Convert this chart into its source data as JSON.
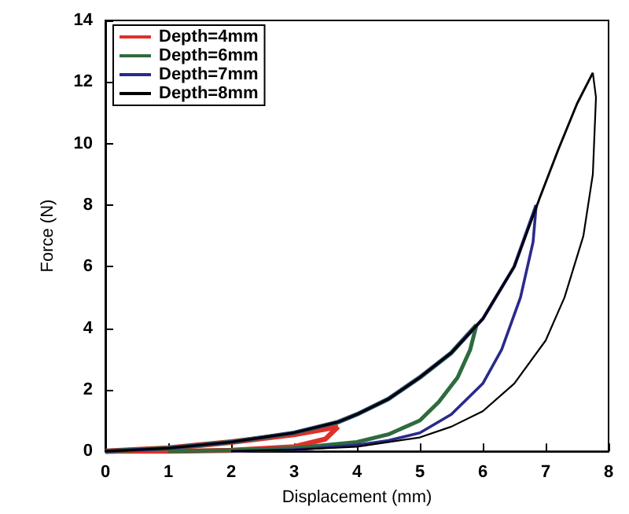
{
  "chart_data": {
    "type": "line",
    "xlabel": "Displacement (mm)",
    "ylabel": "Force (N)",
    "xlim": [
      0,
      8
    ],
    "xticks": [
      0,
      1,
      2,
      3,
      4,
      5,
      6,
      7,
      8
    ],
    "ylim": [
      0,
      14
    ],
    "yticks": [
      0,
      2,
      4,
      6,
      8,
      10,
      12,
      14
    ],
    "grid": false,
    "legend": "top left",
    "marker": "none",
    "line_style": "solid",
    "series": [
      {
        "name": "Depth=4mm",
        "color": "#e0302a",
        "x": [
          0,
          1,
          2,
          3,
          3.7
        ],
        "values": [
          0,
          0.1,
          0.3,
          0.55,
          0.8
        ]
      },
      {
        "color": "#e0302a",
        "x": [
          3.7,
          3.5,
          3,
          2,
          1,
          0
        ],
        "values": [
          0.8,
          0.4,
          0.15,
          0.03,
          0,
          0
        ]
      },
      {
        "name": "Depth=6mm",
        "color": "#2e6b3e",
        "x": [
          0,
          1,
          2,
          3,
          3.7,
          4,
          4.5,
          5,
          5.5,
          5.9
        ],
        "values": [
          0,
          0.1,
          0.3,
          0.6,
          0.95,
          1.2,
          1.7,
          2.4,
          3.2,
          4.1
        ]
      },
      {
        "color": "#2e6b3e",
        "x": [
          5.9,
          5.8,
          5.6,
          5.3,
          5,
          4.5,
          4,
          3,
          2,
          1
        ],
        "values": [
          4.1,
          3.3,
          2.4,
          1.6,
          1,
          0.55,
          0.3,
          0.1,
          0.03,
          0
        ]
      },
      {
        "name": "Depth=7mm",
        "color": "#2a2a8a",
        "x": [
          0,
          1,
          2,
          3,
          3.7,
          4,
          4.5,
          5,
          5.5,
          6,
          6.5,
          6.85
        ],
        "values": [
          0,
          0.1,
          0.3,
          0.6,
          0.95,
          1.2,
          1.7,
          2.4,
          3.2,
          4.3,
          6,
          8
        ]
      },
      {
        "color": "#2a2a8a",
        "x": [
          6.85,
          6.8,
          6.6,
          6.3,
          6,
          5.5,
          5,
          4.5,
          4,
          3,
          2
        ],
        "values": [
          8,
          6.8,
          5,
          3.3,
          2.2,
          1.2,
          0.6,
          0.35,
          0.2,
          0.05,
          0
        ]
      },
      {
        "name": "Depth=8mm",
        "color": "#000000",
        "x": [
          0,
          1,
          2,
          3,
          3.7,
          4,
          4.5,
          5,
          5.5,
          6,
          6.5,
          6.9,
          7.2,
          7.5,
          7.75
        ],
        "values": [
          0,
          0.1,
          0.3,
          0.6,
          0.95,
          1.2,
          1.7,
          2.4,
          3.2,
          4.3,
          6,
          8.2,
          9.8,
          11.3,
          12.3
        ]
      },
      {
        "color": "#000000",
        "x": [
          7.75,
          7.8,
          7.75,
          7.6,
          7.3,
          7,
          6.5,
          6,
          5.5,
          5,
          4,
          3,
          2
        ],
        "values": [
          12.3,
          11.5,
          9,
          7,
          5,
          3.6,
          2.2,
          1.3,
          0.8,
          0.45,
          0.15,
          0.05,
          0
        ]
      }
    ]
  }
}
